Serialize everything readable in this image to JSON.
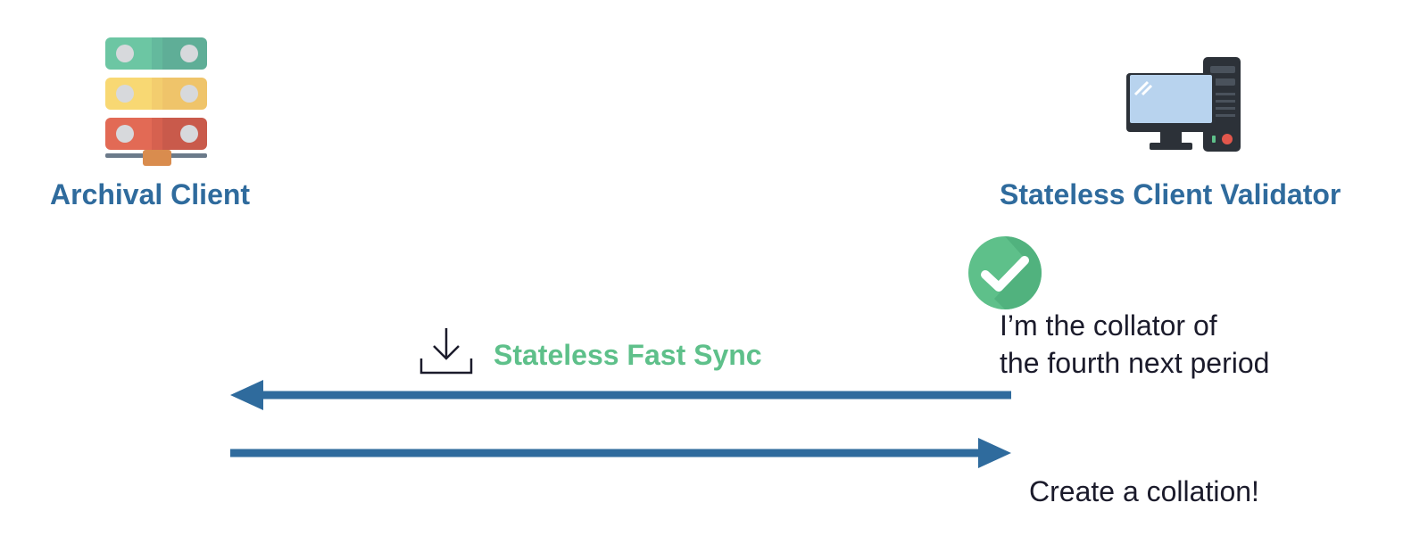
{
  "archival_client": {
    "label": "Archival Client",
    "icon": "server-stack-icon"
  },
  "stateless_validator": {
    "label": "Stateless Client Validator",
    "icon": "desktop-computer-icon",
    "status_icon": "checkmark-circle-icon"
  },
  "sync_message": {
    "label": "Stateless Fast Sync",
    "icon": "download-icon",
    "direction": "validator-to-archival"
  },
  "collator_note": {
    "line1": "I’m the collator of",
    "line2": "the fourth next period"
  },
  "create_message": {
    "label": "Create a collation!",
    "direction": "archival-to-validator"
  },
  "colors": {
    "label_blue": "#2f6b9d",
    "arrow_blue": "#2f6b9d",
    "sync_green": "#5ec08a",
    "check_green": "#5ec08a"
  }
}
